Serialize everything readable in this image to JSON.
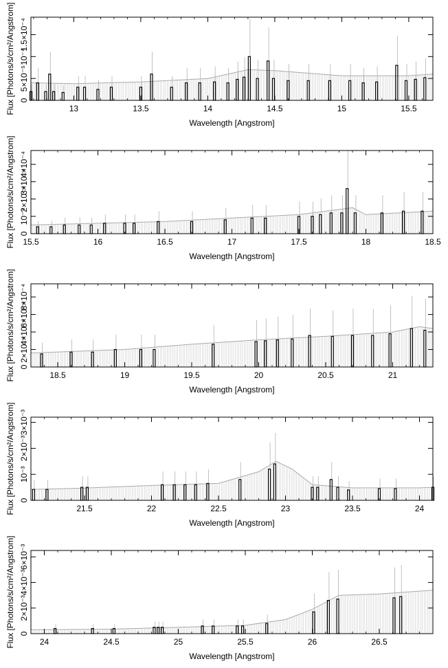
{
  "chart_data": [
    {
      "type": "line",
      "xlabel": "Wavelength [Angstrom]",
      "ylabel": "Flux [Photons/s/cm²/Angstrom]",
      "xlim": [
        12.68,
        15.68
      ],
      "ylim": [
        0,
        0.00019
      ],
      "xticks": [
        13,
        13.5,
        14,
        14.5,
        15,
        15.5
      ],
      "xtick_labels": [
        "13",
        "13.5",
        "14",
        "14.5",
        "15",
        "15.5"
      ],
      "yticks": [
        0,
        5e-05,
        0.0001,
        0.00015
      ],
      "ytick_labels": [
        "0",
        "5×10⁻⁵",
        "10⁻⁴",
        "1.5×10⁻⁴"
      ],
      "continuum": [
        [
          12.68,
          2e-05
        ],
        [
          13.5,
          2.6e-05
        ],
        [
          14.0,
          3.6e-05
        ],
        [
          14.5,
          4.6e-05
        ],
        [
          15.0,
          4.2e-05
        ],
        [
          15.5,
          4.4e-05
        ],
        [
          15.68,
          5e-05
        ]
      ],
      "model": [
        [
          12.68,
          4e-05
        ],
        [
          13.0,
          3.8e-05
        ],
        [
          13.5,
          4.2e-05
        ],
        [
          14.0,
          5e-05
        ],
        [
          14.3,
          7e-05
        ],
        [
          14.5,
          6.8e-05
        ],
        [
          15.0,
          5.6e-05
        ],
        [
          15.5,
          5.6e-05
        ],
        [
          15.68,
          6e-05
        ]
      ],
      "bins": [
        [
          12.68,
          2e-05
        ],
        [
          12.73,
          4e-05
        ],
        [
          12.79,
          2e-05
        ],
        [
          12.82,
          6e-05
        ],
        [
          12.85,
          2e-05
        ],
        [
          12.92,
          1.8e-05
        ],
        [
          13.03,
          3e-05
        ],
        [
          13.08,
          3e-05
        ],
        [
          13.18,
          2.5e-05
        ],
        [
          13.28,
          3e-05
        ],
        [
          13.5,
          3e-05
        ],
        [
          13.58,
          6e-05
        ],
        [
          13.73,
          3e-05
        ],
        [
          13.84,
          4e-05
        ],
        [
          13.94,
          4e-05
        ],
        [
          14.05,
          4.2e-05
        ],
        [
          14.15,
          4e-05
        ],
        [
          14.22,
          4.8e-05
        ],
        [
          14.27,
          5.3e-05
        ],
        [
          14.31,
          0.0001
        ],
        [
          14.37,
          5e-05
        ],
        [
          14.45,
          9e-05
        ],
        [
          14.49,
          5e-05
        ],
        [
          14.6,
          4.5e-05
        ],
        [
          14.75,
          4.5e-05
        ],
        [
          14.91,
          4.5e-05
        ],
        [
          15.06,
          4.5e-05
        ],
        [
          15.16,
          4e-05
        ],
        [
          15.26,
          4.2e-05
        ],
        [
          15.41,
          8e-05
        ],
        [
          15.48,
          4.5e-05
        ],
        [
          15.55,
          4.8e-05
        ],
        [
          15.62,
          5.2e-05
        ]
      ]
    },
    {
      "type": "line",
      "xlabel": "Wavelength [Angstrom]",
      "ylabel": "Flux [Photons/s/cm²/Angstrom]",
      "xlim": [
        15.5,
        18.5
      ],
      "ylim": [
        0,
        0.00048
      ],
      "xticks": [
        15.5,
        16,
        16.5,
        17,
        17.5,
        18,
        18.5
      ],
      "xtick_labels": [
        "15.5",
        "16",
        "16.5",
        "17",
        "17.5",
        "18",
        "18.5"
      ],
      "yticks": [
        0,
        0.0001,
        0.0002,
        0.0003,
        0.0004
      ],
      "ytick_labels": [
        "0",
        "10⁻⁴",
        "2×10⁻⁴",
        "3×10⁻⁴",
        "4×10⁻⁴"
      ],
      "continuum": [
        [
          15.5,
          4e-05
        ],
        [
          16.0,
          5e-05
        ],
        [
          16.5,
          6.5e-05
        ],
        [
          17.0,
          8e-05
        ],
        [
          17.5,
          0.0001
        ],
        [
          17.8,
          0.00012
        ],
        [
          18.0,
          0.0001
        ],
        [
          18.5,
          0.00012
        ]
      ],
      "model": [
        [
          15.5,
          5e-05
        ],
        [
          16.0,
          6e-05
        ],
        [
          16.5,
          7e-05
        ],
        [
          17.0,
          9e-05
        ],
        [
          17.5,
          0.00011
        ],
        [
          17.8,
          0.00014
        ],
        [
          17.9,
          0.00015
        ],
        [
          18.0,
          0.00011
        ],
        [
          18.5,
          0.00013
        ]
      ],
      "bins": [
        [
          15.55,
          4e-05
        ],
        [
          15.65,
          4e-05
        ],
        [
          15.75,
          5e-05
        ],
        [
          15.86,
          5e-05
        ],
        [
          15.95,
          5e-05
        ],
        [
          16.05,
          6e-05
        ],
        [
          16.2,
          6e-05
        ],
        [
          16.27,
          6e-05
        ],
        [
          16.45,
          7e-05
        ],
        [
          16.7,
          7e-05
        ],
        [
          16.95,
          8e-05
        ],
        [
          17.15,
          9e-05
        ],
        [
          17.25,
          9e-05
        ],
        [
          17.5,
          0.0001
        ],
        [
          17.6,
          0.0001
        ],
        [
          17.66,
          0.00011
        ],
        [
          17.74,
          0.00012
        ],
        [
          17.82,
          0.00012
        ],
        [
          17.86,
          0.00026
        ],
        [
          17.92,
          0.00012
        ],
        [
          18.12,
          0.00012
        ],
        [
          18.28,
          0.00013
        ],
        [
          18.42,
          0.00013
        ]
      ]
    },
    {
      "type": "line",
      "xlabel": "Wavelength [Angstrom]",
      "ylabel": "Flux [Photons/s/cm²/Angstrom]",
      "xlim": [
        18.3,
        21.3
      ],
      "ylim": [
        0,
        0.00095
      ],
      "xticks": [
        18.5,
        19,
        19.5,
        20,
        20.5,
        21
      ],
      "xtick_labels": [
        "18.5",
        "19",
        "19.5",
        "20",
        "20.5",
        "21"
      ],
      "yticks": [
        0,
        0.0002,
        0.0004,
        0.0006,
        0.0008
      ],
      "ytick_labels": [
        "0",
        "2×10⁻⁴",
        "4×10⁻⁴",
        "6×10⁻⁴",
        "8×10⁻⁴"
      ],
      "continuum": [
        [
          18.3,
          0.00015
        ],
        [
          18.5,
          0.00016
        ],
        [
          19.0,
          0.00018
        ],
        [
          19.5,
          0.00024
        ],
        [
          20.0,
          0.0003
        ],
        [
          20.5,
          0.00034
        ],
        [
          21.0,
          0.00038
        ],
        [
          21.2,
          0.00044
        ],
        [
          21.3,
          0.00042
        ]
      ],
      "model": [
        [
          18.3,
          0.00016
        ],
        [
          19.0,
          0.0002
        ],
        [
          19.5,
          0.00026
        ],
        [
          20.0,
          0.00031
        ],
        [
          20.5,
          0.00035
        ],
        [
          21.0,
          0.0004
        ],
        [
          21.2,
          0.00046
        ],
        [
          21.3,
          0.00044
        ]
      ],
      "bins": [
        [
          18.38,
          0.00015
        ],
        [
          18.6,
          0.00017
        ],
        [
          18.76,
          0.00017
        ],
        [
          18.93,
          0.0002
        ],
        [
          19.12,
          0.0002
        ],
        [
          19.22,
          0.0002
        ],
        [
          19.66,
          0.00026
        ],
        [
          19.98,
          0.00029
        ],
        [
          20.05,
          0.0003
        ],
        [
          20.14,
          0.00031
        ],
        [
          20.25,
          0.00032
        ],
        [
          20.38,
          0.00036
        ],
        [
          20.55,
          0.00035
        ],
        [
          20.7,
          0.00036
        ],
        [
          20.85,
          0.00036
        ],
        [
          20.98,
          0.00038
        ],
        [
          21.14,
          0.00044
        ],
        [
          21.24,
          0.00042
        ]
      ]
    },
    {
      "type": "line",
      "xlabel": "Wavelength [Angstrom]",
      "ylabel": "Flux [Photons/s/cm²/Angstrom]",
      "xlim": [
        21.1,
        24.1
      ],
      "ylim": [
        0,
        0.0032
      ],
      "xticks": [
        21.5,
        22,
        22.5,
        23,
        23.5,
        24
      ],
      "xtick_labels": [
        "21.5",
        "22",
        "22.5",
        "23",
        "23.5",
        "24"
      ],
      "yticks": [
        0,
        0.001,
        0.002,
        0.003
      ],
      "ytick_labels": [
        "0",
        "10⁻³",
        "2×10⁻³",
        "3×10⁻³"
      ],
      "continuum": [
        [
          21.1,
          0.0004
        ],
        [
          21.5,
          0.00045
        ],
        [
          22.0,
          0.00055
        ],
        [
          22.5,
          0.0006
        ],
        [
          22.8,
          0.0009
        ],
        [
          22.95,
          0.0013
        ],
        [
          23.1,
          0.0009
        ],
        [
          23.2,
          0.0005
        ],
        [
          23.5,
          0.00045
        ],
        [
          24.0,
          0.00045
        ],
        [
          24.1,
          0.00045
        ]
      ],
      "model": [
        [
          21.1,
          0.00042
        ],
        [
          21.5,
          0.00047
        ],
        [
          22.0,
          0.00057
        ],
        [
          22.5,
          0.00065
        ],
        [
          22.8,
          0.0011
        ],
        [
          22.93,
          0.0015
        ],
        [
          23.05,
          0.0012
        ],
        [
          23.2,
          0.0006
        ],
        [
          23.5,
          0.00048
        ],
        [
          24.0,
          0.00048
        ],
        [
          24.1,
          0.0005
        ]
      ],
      "bins": [
        [
          21.12,
          0.00042
        ],
        [
          21.22,
          0.00042
        ],
        [
          21.48,
          0.0005
        ],
        [
          21.52,
          0.0005
        ],
        [
          22.08,
          0.0006
        ],
        [
          22.17,
          0.0006
        ],
        [
          22.25,
          0.0006
        ],
        [
          22.33,
          0.0006
        ],
        [
          22.42,
          0.00065
        ],
        [
          22.66,
          0.0008
        ],
        [
          22.88,
          0.0012
        ],
        [
          22.92,
          0.0014
        ],
        [
          23.2,
          0.0005
        ],
        [
          23.24,
          0.0005
        ],
        [
          23.34,
          0.0008
        ],
        [
          23.39,
          0.0005
        ],
        [
          23.47,
          0.0004
        ],
        [
          23.7,
          0.00045
        ],
        [
          23.82,
          0.00045
        ],
        [
          24.1,
          0.0005
        ]
      ]
    },
    {
      "type": "line",
      "xlabel": "Wavelength [Angstrom]",
      "ylabel": "Flux [Photons/s/cm²/Angstrom]",
      "xlim": [
        23.9,
        26.9
      ],
      "ylim": [
        0,
        0.0065
      ],
      "xticks": [
        24,
        24.5,
        25,
        25.5,
        26,
        26.5
      ],
      "xtick_labels": [
        "24",
        "24.5",
        "25",
        "25.5",
        "26",
        "26.5"
      ],
      "yticks": [
        0,
        0.002,
        0.004,
        0.006
      ],
      "ytick_labels": [
        "0",
        "2×10⁻³",
        "4×10⁻³",
        "6×10⁻³"
      ],
      "continuum": [
        [
          23.9,
          0.0003
        ],
        [
          24.5,
          0.00035
        ],
        [
          25.0,
          0.0005
        ],
        [
          25.5,
          0.0006
        ],
        [
          25.8,
          0.001
        ],
        [
          26.0,
          0.0018
        ],
        [
          26.2,
          0.0028
        ],
        [
          26.5,
          0.0028
        ],
        [
          26.9,
          0.0032
        ]
      ],
      "model": [
        [
          23.9,
          0.0003
        ],
        [
          24.5,
          0.00035
        ],
        [
          25.0,
          0.0005
        ],
        [
          25.5,
          0.00065
        ],
        [
          25.8,
          0.0011
        ],
        [
          26.0,
          0.0019
        ],
        [
          26.2,
          0.003
        ],
        [
          26.5,
          0.0031
        ],
        [
          26.9,
          0.0034
        ]
      ],
      "bins": [
        [
          24.08,
          0.0004
        ],
        [
          24.36,
          0.0004
        ],
        [
          24.52,
          0.0004
        ],
        [
          24.82,
          0.0005
        ],
        [
          24.85,
          0.0005
        ],
        [
          24.88,
          0.0005
        ],
        [
          25.18,
          0.0006
        ],
        [
          25.26,
          0.0006
        ],
        [
          25.44,
          0.0006
        ],
        [
          25.48,
          0.0006
        ],
        [
          25.66,
          0.0008
        ],
        [
          26.01,
          0.0017
        ],
        [
          26.12,
          0.0026
        ],
        [
          26.19,
          0.0027
        ],
        [
          26.61,
          0.0028
        ],
        [
          26.66,
          0.0029
        ]
      ]
    }
  ]
}
